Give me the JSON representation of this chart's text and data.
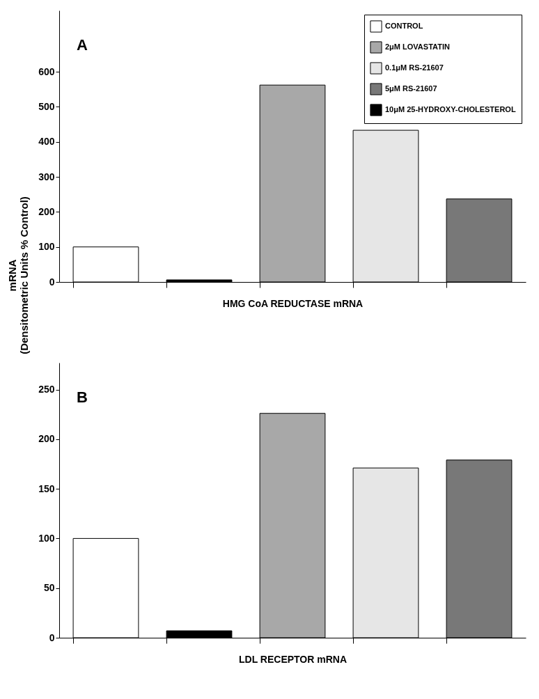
{
  "chart_data": [
    {
      "type": "bar",
      "xlabel": "HMG CoA REDUCTASE mRNA",
      "ylabel": "mRNA\n(Densitometric Units % Control)",
      "annotations": [
        "A"
      ],
      "categories": [
        null,
        null,
        null,
        null,
        null
      ],
      "ylim": [
        0,
        775
      ],
      "yticks": [
        0,
        100,
        200,
        300,
        400,
        500,
        600
      ],
      "grid": false,
      "legend": "top right",
      "series": [
        {
          "name": "CONTROL",
          "color": "#ffffff",
          "values": [
            100,
            null,
            null,
            null,
            null
          ]
        },
        {
          "name": "2μM LOVASTATIN",
          "color": "#a8a8a8",
          "values": [
            null,
            null,
            562,
            null,
            null
          ]
        },
        {
          "name": "0.1μM RS-21607",
          "color": "#e6e6e6",
          "values": [
            null,
            null,
            null,
            433,
            null
          ]
        },
        {
          "name": "5μM RS-21607",
          "color": "#787878",
          "values": [
            null,
            null,
            null,
            null,
            237
          ]
        },
        {
          "name": "10μM 25-HYDROXY-CHOLESTEROL",
          "color": "#000000",
          "values": [
            null,
            6,
            null,
            null,
            null
          ]
        }
      ]
    },
    {
      "type": "bar",
      "xlabel": "LDL RECEPTOR mRNA",
      "annotations": [
        "B"
      ],
      "categories": [
        null,
        null,
        null,
        null,
        null
      ],
      "ylim": [
        0,
        277
      ],
      "yticks": [
        0,
        50,
        100,
        150,
        200,
        250
      ],
      "grid": false,
      "series": [
        {
          "name": "CONTROL",
          "color": "#ffffff",
          "values": [
            100,
            null,
            null,
            null,
            null
          ]
        },
        {
          "name": "2μM LOVASTATIN",
          "color": "#a8a8a8",
          "values": [
            null,
            null,
            226,
            null,
            null
          ]
        },
        {
          "name": "0.1μM RS-21607",
          "color": "#e6e6e6",
          "values": [
            null,
            null,
            null,
            171,
            null
          ]
        },
        {
          "name": "5μM RS-21607",
          "color": "#787878",
          "values": [
            null,
            null,
            null,
            null,
            179
          ]
        },
        {
          "name": "10μM 25-HYDROXY-CHOLESTEROL",
          "color": "#000000",
          "values": [
            null,
            7,
            null,
            null,
            null
          ]
        }
      ]
    }
  ]
}
